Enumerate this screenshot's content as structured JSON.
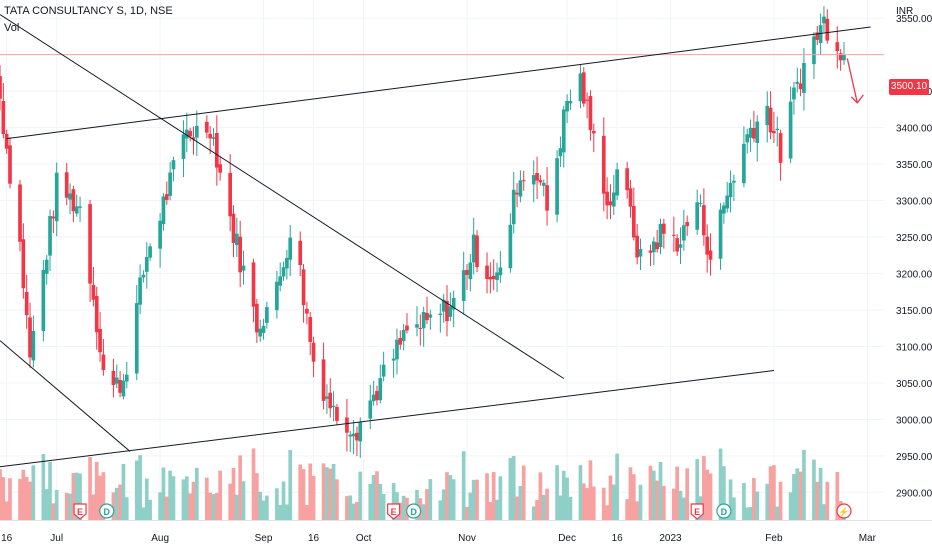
{
  "header": {
    "symbol_line": "TATA CONSULTANCY S, 1D, NSE",
    "volume_label": "Vol"
  },
  "price_axis": {
    "unit": "INR",
    "last_price_tag": "3500.10"
  },
  "colors": {
    "up": "#26a69a",
    "down": "#f23645",
    "up_volume": "#8ed0c8",
    "down_volume": "#f7a1a1",
    "trendline": "#131722",
    "price_line": "#f7a1a1",
    "arrow": "#f23645"
  },
  "event_markers": [
    {
      "letter": "E",
      "kind": "earnings",
      "date": "2022-07-08"
    },
    {
      "letter": "D",
      "kind": "dividend",
      "date": "2022-07-16"
    },
    {
      "letter": "E",
      "kind": "earnings",
      "date": "2022-10-10"
    },
    {
      "letter": "D",
      "kind": "dividend",
      "date": "2022-10-16"
    },
    {
      "letter": "E",
      "kind": "earnings",
      "date": "2023-01-09"
    },
    {
      "letter": "D",
      "kind": "dividend",
      "date": "2023-01-17"
    },
    {
      "letter": "⚡",
      "kind": "split-or-event",
      "date": "2023-02-22"
    }
  ],
  "chart_data": {
    "type": "candlestick",
    "title": "TATA CONSULTANCY S, 1D, NSE",
    "ylabel": "INR",
    "ylim": [
      2862,
      3575
    ],
    "xlim": [
      "2022-06-14",
      "2023-03-06"
    ],
    "yticks": [
      2900,
      2950,
      3000,
      3050,
      3100,
      3150,
      3200,
      3250,
      3300,
      3350,
      3400,
      3450,
      3500,
      3550
    ],
    "xticks": [
      {
        "label": "16",
        "date": "2022-06-16"
      },
      {
        "label": "Jul",
        "date": "2022-07-01"
      },
      {
        "label": "Aug",
        "date": "2022-08-01"
      },
      {
        "label": "Sep",
        "date": "2022-09-01"
      },
      {
        "label": "16",
        "date": "2022-09-16"
      },
      {
        "label": "Oct",
        "date": "2022-10-01"
      },
      {
        "label": "Nov",
        "date": "2022-11-01"
      },
      {
        "label": "Dec",
        "date": "2022-12-01"
      },
      {
        "label": "16",
        "date": "2022-12-16"
      },
      {
        "label": "2023",
        "date": "2023-01-01"
      },
      {
        "label": "Feb",
        "date": "2023-02-01"
      },
      {
        "label": "Mar",
        "date": "2023-03-01"
      }
    ],
    "price_line": 3500.1,
    "trendlines": [
      {
        "from": {
          "date": "2022-06-16",
          "price": 3385
        },
        "to": {
          "date": "2023-03-02",
          "price": 3538
        }
      },
      {
        "from": {
          "date": "2022-06-14",
          "price": 3555
        },
        "to": {
          "date": "2022-11-30",
          "price": 3056
        }
      },
      {
        "from": {
          "date": "2022-06-14",
          "price": 2935
        },
        "to": {
          "date": "2023-02-01",
          "price": 3067
        }
      },
      {
        "from": {
          "date": "2022-06-14",
          "price": 3108
        },
        "to": {
          "date": "2022-07-23",
          "price": 2956
        }
      }
    ],
    "arrow": {
      "from": {
        "date": "2023-02-23",
        "price": 3495
      },
      "to": {
        "date": "2023-02-26",
        "price": 3434
      }
    },
    "series_keypoints": [
      {
        "date": "2022-06-14",
        "close": 3440
      },
      {
        "date": "2022-06-20",
        "close": 3240
      },
      {
        "date": "2022-06-23",
        "close": 3085
      },
      {
        "date": "2022-07-01",
        "close": 3320
      },
      {
        "date": "2022-07-08",
        "close": 3290
      },
      {
        "date": "2022-07-12",
        "close": 3170
      },
      {
        "date": "2022-07-16",
        "close": 3035
      },
      {
        "date": "2022-07-21",
        "close": 3055
      },
      {
        "date": "2022-07-28",
        "close": 3225
      },
      {
        "date": "2022-08-09",
        "close": 3395
      },
      {
        "date": "2022-08-12",
        "close": 3395
      },
      {
        "date": "2022-08-16",
        "close": 3405
      },
      {
        "date": "2022-08-22",
        "close": 3275
      },
      {
        "date": "2022-08-30",
        "close": 3130
      },
      {
        "date": "2022-09-05",
        "close": 3175
      },
      {
        "date": "2022-09-09",
        "close": 3260
      },
      {
        "date": "2022-09-12",
        "close": 3200
      },
      {
        "date": "2022-09-16",
        "close": 3080
      },
      {
        "date": "2022-09-22",
        "close": 3010
      },
      {
        "date": "2022-09-29",
        "close": 2990
      },
      {
        "date": "2022-10-06",
        "close": 3050
      },
      {
        "date": "2022-10-14",
        "close": 3120
      },
      {
        "date": "2022-10-20",
        "close": 3130
      },
      {
        "date": "2022-10-28",
        "close": 3160
      },
      {
        "date": "2022-11-03",
        "close": 3235
      },
      {
        "date": "2022-11-07",
        "close": 3205
      },
      {
        "date": "2022-11-11",
        "close": 3195
      },
      {
        "date": "2022-11-16",
        "close": 3325
      },
      {
        "date": "2022-11-22",
        "close": 3345
      },
      {
        "date": "2022-11-25",
        "close": 3290
      },
      {
        "date": "2022-12-01",
        "close": 3435
      },
      {
        "date": "2022-12-05",
        "close": 3465
      },
      {
        "date": "2022-12-09",
        "close": 3380
      },
      {
        "date": "2022-12-14",
        "close": 3290
      },
      {
        "date": "2022-12-16",
        "close": 3350
      },
      {
        "date": "2022-12-20",
        "close": 3280
      },
      {
        "date": "2022-12-23",
        "close": 3215
      },
      {
        "date": "2022-12-29",
        "close": 3255
      },
      {
        "date": "2023-01-04",
        "close": 3245
      },
      {
        "date": "2023-01-09",
        "close": 3300
      },
      {
        "date": "2023-01-13",
        "close": 3225
      },
      {
        "date": "2023-01-19",
        "close": 3325
      },
      {
        "date": "2023-01-25",
        "close": 3400
      },
      {
        "date": "2023-01-30",
        "close": 3425
      },
      {
        "date": "2023-02-03",
        "close": 3365
      },
      {
        "date": "2023-02-08",
        "close": 3460
      },
      {
        "date": "2023-02-13",
        "close": 3520
      },
      {
        "date": "2023-02-16",
        "close": 3545
      },
      {
        "date": "2023-02-20",
        "close": 3520
      },
      {
        "date": "2023-02-22",
        "close": 3500.1
      }
    ]
  }
}
